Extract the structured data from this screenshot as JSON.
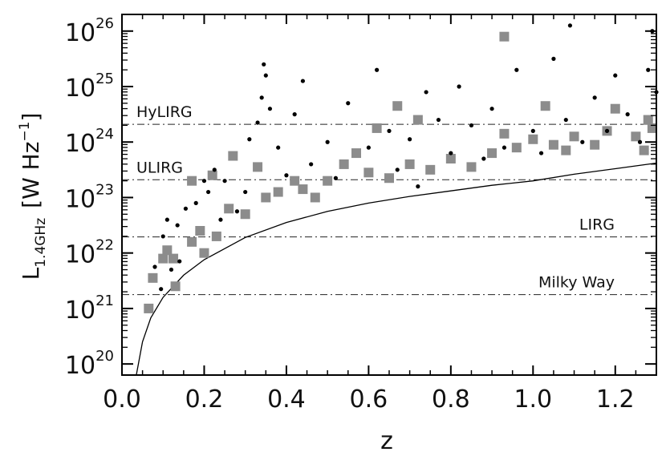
{
  "chart_data": {
    "type": "scatter",
    "title": "",
    "xlabel": "z",
    "ylabel": {
      "base": "L",
      "subscript": "1.4GHz",
      "unit_open": "[W Hz",
      "unit_exp": "−1",
      "unit_close": "]"
    },
    "xlim": [
      0.0,
      1.3
    ],
    "ylim_log10": [
      19.8,
      26.3
    ],
    "yscale": "log",
    "x_ticks": [
      "0.0",
      "0.2",
      "0.4",
      "0.6",
      "0.8",
      "1.0",
      "1.2"
    ],
    "x_tick_values": [
      0.0,
      0.2,
      0.4,
      0.6,
      0.8,
      1.0,
      1.2
    ],
    "y_ticks": [
      {
        "exp10": 20,
        "base": "10",
        "exponent": "20"
      },
      {
        "exp10": 21,
        "base": "10",
        "exponent": "21"
      },
      {
        "exp10": 22,
        "base": "10",
        "exponent": "22"
      },
      {
        "exp10": 23,
        "base": "10",
        "exponent": "23"
      },
      {
        "exp10": 24,
        "base": "10",
        "exponent": "24"
      },
      {
        "exp10": 25,
        "base": "10",
        "exponent": "25"
      },
      {
        "exp10": 26,
        "base": "10",
        "exponent": "26"
      }
    ],
    "thresholds": [
      {
        "label": "HyLIRG",
        "log10_L": 24.32,
        "label_side": "left"
      },
      {
        "label": "ULIRG",
        "log10_L": 23.32,
        "label_side": "left"
      },
      {
        "label": "LIRG",
        "log10_L": 22.29,
        "label_side": "right"
      },
      {
        "label": "Milky Way",
        "log10_L": 21.25,
        "label_side": "right"
      }
    ],
    "detection_limit_curve": {
      "style": "solid",
      "points": [
        [
          0.035,
          19.8
        ],
        [
          0.05,
          20.4
        ],
        [
          0.07,
          20.83
        ],
        [
          0.1,
          21.2
        ],
        [
          0.15,
          21.6
        ],
        [
          0.2,
          21.88
        ],
        [
          0.3,
          22.28
        ],
        [
          0.4,
          22.55
        ],
        [
          0.5,
          22.75
        ],
        [
          0.6,
          22.9
        ],
        [
          0.7,
          23.02
        ],
        [
          0.8,
          23.12
        ],
        [
          0.9,
          23.22
        ],
        [
          1.0,
          23.3
        ],
        [
          1.1,
          23.42
        ],
        [
          1.2,
          23.52
        ],
        [
          1.3,
          23.62
        ]
      ]
    },
    "series": [
      {
        "marker": "square",
        "color": "#8c8c8c",
        "points": [
          [
            0.065,
            21.0
          ],
          [
            0.075,
            21.55
          ],
          [
            0.1,
            21.9
          ],
          [
            0.11,
            22.05
          ],
          [
            0.125,
            21.9
          ],
          [
            0.13,
            21.4
          ],
          [
            0.17,
            22.2
          ],
          [
            0.17,
            23.3
          ],
          [
            0.19,
            22.4
          ],
          [
            0.2,
            22.0
          ],
          [
            0.22,
            23.4
          ],
          [
            0.23,
            22.3
          ],
          [
            0.26,
            22.8
          ],
          [
            0.27,
            23.75
          ],
          [
            0.3,
            22.7
          ],
          [
            0.33,
            23.55
          ],
          [
            0.35,
            23.0
          ],
          [
            0.38,
            23.1
          ],
          [
            0.42,
            23.3
          ],
          [
            0.44,
            23.15
          ],
          [
            0.47,
            23.0
          ],
          [
            0.5,
            23.3
          ],
          [
            0.54,
            23.6
          ],
          [
            0.57,
            23.8
          ],
          [
            0.6,
            23.45
          ],
          [
            0.62,
            24.25
          ],
          [
            0.65,
            23.35
          ],
          [
            0.67,
            24.65
          ],
          [
            0.7,
            23.6
          ],
          [
            0.72,
            24.4
          ],
          [
            0.75,
            23.5
          ],
          [
            0.8,
            23.7
          ],
          [
            0.85,
            23.55
          ],
          [
            0.9,
            23.8
          ],
          [
            0.93,
            24.15
          ],
          [
            0.93,
            25.9
          ],
          [
            0.96,
            23.9
          ],
          [
            1.0,
            24.05
          ],
          [
            1.03,
            24.65
          ],
          [
            1.05,
            23.95
          ],
          [
            1.08,
            23.85
          ],
          [
            1.1,
            24.1
          ],
          [
            1.15,
            23.95
          ],
          [
            1.18,
            24.2
          ],
          [
            1.2,
            24.6
          ],
          [
            1.25,
            24.1
          ],
          [
            1.27,
            23.85
          ],
          [
            1.28,
            24.4
          ],
          [
            1.29,
            24.25
          ]
        ]
      },
      {
        "marker": "dot",
        "color": "#000000",
        "points": [
          [
            0.08,
            21.75
          ],
          [
            0.095,
            21.35
          ],
          [
            0.1,
            22.3
          ],
          [
            0.11,
            22.6
          ],
          [
            0.12,
            21.7
          ],
          [
            0.135,
            22.5
          ],
          [
            0.14,
            21.85
          ],
          [
            0.155,
            22.8
          ],
          [
            0.18,
            22.9
          ],
          [
            0.2,
            23.3
          ],
          [
            0.21,
            23.1
          ],
          [
            0.225,
            23.5
          ],
          [
            0.24,
            22.6
          ],
          [
            0.25,
            23.3
          ],
          [
            0.28,
            22.75
          ],
          [
            0.3,
            23.1
          ],
          [
            0.31,
            24.05
          ],
          [
            0.33,
            24.35
          ],
          [
            0.34,
            24.8
          ],
          [
            0.345,
            25.4
          ],
          [
            0.35,
            25.2
          ],
          [
            0.36,
            24.6
          ],
          [
            0.38,
            23.9
          ],
          [
            0.4,
            23.4
          ],
          [
            0.42,
            24.5
          ],
          [
            0.44,
            25.1
          ],
          [
            0.46,
            23.6
          ],
          [
            0.5,
            24.0
          ],
          [
            0.52,
            23.35
          ],
          [
            0.55,
            24.7
          ],
          [
            0.6,
            23.9
          ],
          [
            0.62,
            25.3
          ],
          [
            0.65,
            24.2
          ],
          [
            0.67,
            23.5
          ],
          [
            0.7,
            24.05
          ],
          [
            0.72,
            23.2
          ],
          [
            0.74,
            24.9
          ],
          [
            0.77,
            24.4
          ],
          [
            0.8,
            23.8
          ],
          [
            0.82,
            25.0
          ],
          [
            0.85,
            24.3
          ],
          [
            0.88,
            23.7
          ],
          [
            0.9,
            24.6
          ],
          [
            0.93,
            23.9
          ],
          [
            0.96,
            25.3
          ],
          [
            1.0,
            24.2
          ],
          [
            1.02,
            23.8
          ],
          [
            1.05,
            25.5
          ],
          [
            1.08,
            24.4
          ],
          [
            1.09,
            26.1
          ],
          [
            1.12,
            24.0
          ],
          [
            1.15,
            24.8
          ],
          [
            1.18,
            24.2
          ],
          [
            1.2,
            25.2
          ],
          [
            1.23,
            24.5
          ],
          [
            1.26,
            24.0
          ],
          [
            1.28,
            25.3
          ],
          [
            1.29,
            26.0
          ],
          [
            1.3,
            24.9
          ]
        ]
      }
    ]
  }
}
